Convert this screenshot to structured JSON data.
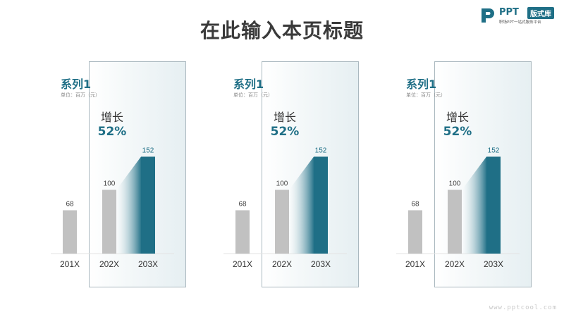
{
  "page": {
    "title": "在此输入本页标题"
  },
  "logo": {
    "brand": "PPT",
    "badge": "版式库",
    "tagline": "职场PPT一站式服务平台"
  },
  "watermark": "www.pptcool.com",
  "colors": {
    "accent": "#1f6f86",
    "bar_gray": "#c1c1c1",
    "gradient_start": "#ffffff"
  },
  "panels": [
    {
      "series_name": "系列1",
      "unit": "单位：百万（元）",
      "growth_label": "增长",
      "growth_value": "52%"
    },
    {
      "series_name": "系列1",
      "unit": "单位：百万（元）",
      "growth_label": "增长",
      "growth_value": "52%"
    },
    {
      "series_name": "系列1",
      "unit": "单位：百万（元）",
      "growth_label": "增长",
      "growth_value": "52%"
    }
  ],
  "chart_data": [
    {
      "type": "bar",
      "title": "系列1",
      "ylabel": "单位：百万（元）",
      "categories": [
        "201X",
        "202X",
        "203X"
      ],
      "values": [
        68,
        100,
        152
      ],
      "highlight": "203X",
      "annotation": "增长 52%",
      "ylim": [
        0,
        160
      ],
      "grid": false
    },
    {
      "type": "bar",
      "title": "系列1",
      "ylabel": "单位：百万（元）",
      "categories": [
        "201X",
        "202X",
        "203X"
      ],
      "values": [
        68,
        100,
        152
      ],
      "highlight": "203X",
      "annotation": "增长 52%",
      "ylim": [
        0,
        160
      ],
      "grid": false
    },
    {
      "type": "bar",
      "title": "系列1",
      "ylabel": "单位：百万（元）",
      "categories": [
        "201X",
        "202X",
        "203X"
      ],
      "values": [
        68,
        100,
        152
      ],
      "highlight": "203X",
      "annotation": "增长 52%",
      "ylim": [
        0,
        160
      ],
      "grid": false
    }
  ]
}
